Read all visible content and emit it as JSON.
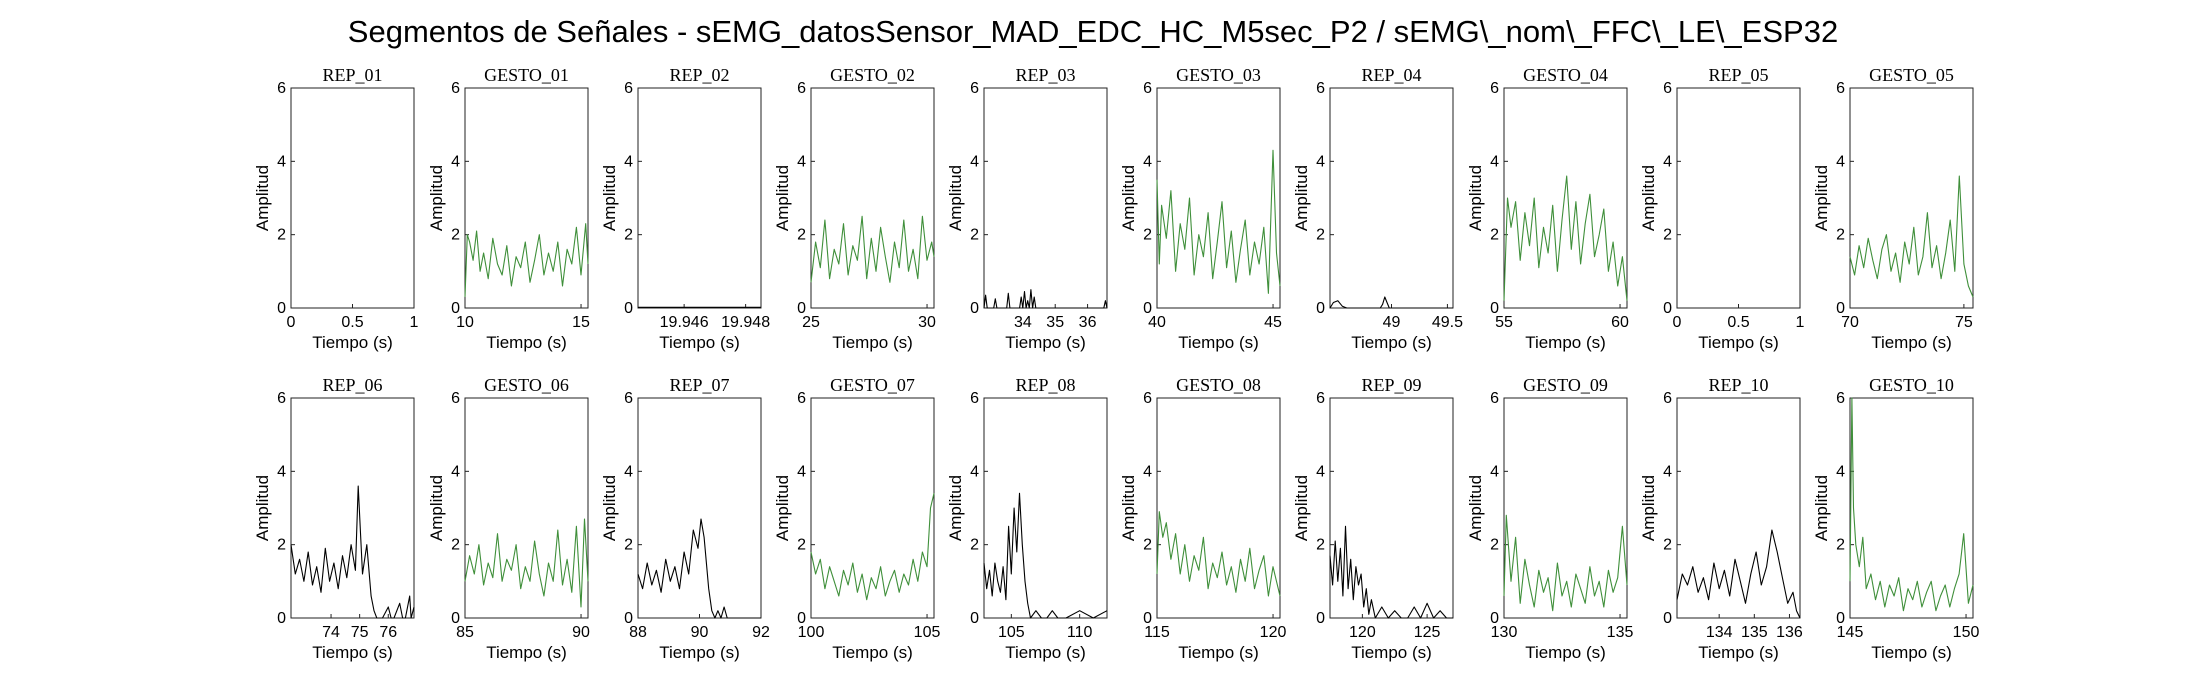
{
  "chart_data": {
    "type": "line",
    "title": "Segmentos de Señales - sEMG_datosSensor_MAD_EDC_HC_M5sec_P2 / sEMG\\_nom\\_FFC\\_LE\\_ESP32",
    "xlabel": "Tiempo (s)",
    "ylabel": "Amplitud",
    "ylim": [
      0,
      6
    ],
    "yticks": [
      0,
      2,
      4,
      6
    ],
    "colors": {
      "rep": "#000000",
      "gesto": "#3f8f3a"
    },
    "panels": [
      {
        "title": "REP_01",
        "kind": "rep",
        "xlim": [
          0,
          1
        ],
        "xticks": [
          0,
          0.5,
          1
        ],
        "x": [],
        "y": []
      },
      {
        "title": "GESTO_01",
        "kind": "gesto",
        "xlim": [
          10,
          15.3
        ],
        "xticks": [
          10,
          15
        ],
        "x": [
          10.0,
          10.1,
          10.2,
          10.35,
          10.5,
          10.65,
          10.8,
          11.0,
          11.2,
          11.4,
          11.6,
          11.8,
          12.0,
          12.2,
          12.4,
          12.6,
          12.8,
          13.0,
          13.2,
          13.4,
          13.6,
          13.8,
          14.0,
          14.2,
          14.4,
          14.6,
          14.8,
          15.0,
          15.2,
          15.3
        ],
        "y": [
          0.3,
          2.0,
          1.8,
          1.3,
          2.1,
          1.0,
          1.5,
          0.8,
          1.9,
          1.2,
          0.9,
          1.7,
          0.6,
          1.4,
          1.1,
          1.8,
          0.7,
          1.3,
          2.0,
          0.9,
          1.5,
          1.0,
          1.8,
          0.6,
          1.6,
          1.2,
          2.2,
          0.9,
          2.3,
          1.2
        ]
      },
      {
        "title": "REP_02",
        "kind": "rep",
        "xlim": [
          19.9445,
          19.9485
        ],
        "xticks": [
          19.946,
          19.948
        ],
        "x": [
          19.9445,
          19.9485
        ],
        "y": [
          0.02,
          0.02
        ]
      },
      {
        "title": "GESTO_02",
        "kind": "gesto",
        "xlim": [
          25,
          30.3
        ],
        "xticks": [
          25,
          30
        ],
        "x": [
          25.0,
          25.2,
          25.4,
          25.6,
          25.8,
          26.0,
          26.2,
          26.4,
          26.6,
          26.8,
          27.0,
          27.2,
          27.4,
          27.6,
          27.8,
          28.0,
          28.2,
          28.4,
          28.6,
          28.8,
          29.0,
          29.2,
          29.4,
          29.6,
          29.8,
          30.0,
          30.2,
          30.3
        ],
        "y": [
          0.7,
          1.8,
          1.1,
          2.4,
          0.8,
          1.6,
          1.2,
          2.3,
          0.9,
          1.7,
          1.3,
          2.5,
          0.8,
          1.9,
          1.0,
          2.2,
          1.4,
          0.7,
          1.8,
          1.1,
          2.4,
          1.0,
          1.6,
          0.8,
          2.5,
          1.3,
          1.8,
          1.4
        ]
      },
      {
        "title": "REP_03",
        "kind": "rep",
        "xlim": [
          32.8,
          36.6
        ],
        "xticks": [
          34,
          35,
          36
        ],
        "x": [
          32.8,
          32.85,
          32.9,
          33.1,
          33.15,
          33.2,
          33.5,
          33.55,
          33.6,
          33.9,
          33.95,
          34.0,
          34.05,
          34.1,
          34.15,
          34.2,
          34.25,
          34.3,
          34.35,
          34.4,
          36.5,
          36.55,
          36.6
        ],
        "y": [
          0,
          0.35,
          0,
          0,
          0.25,
          0,
          0,
          0.4,
          0,
          0,
          0.3,
          0,
          0.45,
          0,
          0.2,
          0,
          0.5,
          0,
          0.3,
          0,
          0,
          0.2,
          0
        ]
      },
      {
        "title": "GESTO_03",
        "kind": "gesto",
        "xlim": [
          40,
          45.3
        ],
        "xticks": [
          40,
          45
        ],
        "x": [
          40.0,
          40.1,
          40.2,
          40.4,
          40.6,
          40.8,
          41.0,
          41.2,
          41.4,
          41.6,
          41.8,
          42.0,
          42.2,
          42.4,
          42.6,
          42.8,
          43.0,
          43.2,
          43.4,
          43.6,
          43.8,
          44.0,
          44.2,
          44.4,
          44.6,
          44.8,
          45.0,
          45.15,
          45.3
        ],
        "y": [
          3.5,
          1.2,
          2.8,
          1.9,
          3.2,
          1.0,
          2.3,
          1.6,
          3.0,
          0.9,
          2.0,
          1.4,
          2.6,
          0.8,
          1.8,
          2.9,
          1.1,
          2.1,
          0.7,
          1.6,
          2.4,
          0.9,
          1.8,
          1.2,
          2.2,
          0.4,
          4.3,
          1.5,
          0.6
        ]
      },
      {
        "title": "REP_04",
        "kind": "rep",
        "xlim": [
          48.45,
          49.55
        ],
        "xticks": [
          49,
          49.5
        ],
        "x": [
          48.45,
          48.48,
          48.52,
          48.56,
          48.6,
          48.9,
          48.92,
          48.94,
          48.96,
          48.98,
          49.55
        ],
        "y": [
          0,
          0.15,
          0.2,
          0.05,
          0,
          0,
          0.1,
          0.3,
          0.15,
          0,
          0
        ]
      },
      {
        "title": "GESTO_04",
        "kind": "gesto",
        "xlim": [
          55,
          60.3
        ],
        "xticks": [
          55,
          60
        ],
        "x": [
          55.0,
          55.15,
          55.3,
          55.5,
          55.7,
          55.9,
          56.1,
          56.3,
          56.5,
          56.7,
          56.9,
          57.1,
          57.3,
          57.5,
          57.7,
          57.9,
          58.1,
          58.3,
          58.5,
          58.7,
          58.9,
          59.1,
          59.3,
          59.5,
          59.7,
          59.9,
          60.1,
          60.3
        ],
        "y": [
          0.2,
          3.0,
          2.2,
          2.9,
          1.3,
          2.6,
          1.7,
          3.0,
          1.1,
          2.2,
          1.5,
          2.8,
          1.0,
          2.4,
          3.6,
          1.6,
          2.9,
          1.2,
          2.3,
          3.1,
          1.4,
          2.0,
          2.7,
          1.0,
          1.8,
          0.6,
          1.4,
          0.2
        ]
      },
      {
        "title": "REP_05",
        "kind": "rep",
        "xlim": [
          0,
          1
        ],
        "xticks": [
          0,
          0.5,
          1
        ],
        "x": [],
        "y": []
      },
      {
        "title": "GESTO_05",
        "kind": "gesto",
        "xlim": [
          70,
          75.4
        ],
        "xticks": [
          70,
          75
        ],
        "x": [
          70.0,
          70.2,
          70.4,
          70.6,
          70.8,
          71.0,
          71.2,
          71.4,
          71.6,
          71.8,
          72.0,
          72.2,
          72.4,
          72.6,
          72.8,
          73.0,
          73.2,
          73.4,
          73.6,
          73.8,
          74.0,
          74.2,
          74.4,
          74.6,
          74.8,
          75.0,
          75.2,
          75.4
        ],
        "y": [
          1.4,
          0.9,
          1.7,
          1.1,
          1.9,
          1.3,
          0.8,
          1.6,
          2.0,
          1.0,
          1.5,
          0.7,
          1.8,
          1.2,
          2.2,
          0.9,
          1.4,
          2.6,
          1.1,
          1.7,
          0.8,
          1.5,
          2.4,
          1.0,
          3.6,
          1.2,
          0.6,
          0.3
        ]
      },
      {
        "title": "REP_06",
        "kind": "rep",
        "xlim": [
          72.6,
          76.9
        ],
        "xticks": [
          74,
          75,
          76
        ],
        "x": [
          72.6,
          72.75,
          72.9,
          73.05,
          73.2,
          73.35,
          73.5,
          73.65,
          73.8,
          73.95,
          74.1,
          74.25,
          74.4,
          74.55,
          74.7,
          74.85,
          74.95,
          75.1,
          75.25,
          75.4,
          75.5,
          75.6,
          75.8,
          76.0,
          76.1,
          76.2,
          76.4,
          76.5,
          76.6,
          76.75,
          76.8,
          76.9
        ],
        "y": [
          2.0,
          1.2,
          1.6,
          1.0,
          1.8,
          0.9,
          1.4,
          0.7,
          1.9,
          1.0,
          1.5,
          0.8,
          1.7,
          1.1,
          2.0,
          1.3,
          3.6,
          1.2,
          2.0,
          0.6,
          0.2,
          0,
          0,
          0.3,
          0,
          0,
          0.4,
          0,
          0,
          0.6,
          0,
          0.3
        ]
      },
      {
        "title": "GESTO_06",
        "kind": "gesto",
        "xlim": [
          85,
          90.3
        ],
        "xticks": [
          85,
          90
        ],
        "x": [
          85.0,
          85.2,
          85.4,
          85.6,
          85.8,
          86.0,
          86.2,
          86.4,
          86.6,
          86.8,
          87.0,
          87.2,
          87.4,
          87.6,
          87.8,
          88.0,
          88.2,
          88.4,
          88.6,
          88.8,
          89.0,
          89.2,
          89.4,
          89.6,
          89.8,
          90.0,
          90.15,
          90.3
        ],
        "y": [
          1.0,
          1.7,
          1.2,
          2.0,
          0.9,
          1.5,
          1.1,
          2.3,
          1.0,
          1.6,
          1.3,
          2.0,
          0.8,
          1.4,
          1.0,
          2.1,
          1.2,
          0.6,
          1.5,
          1.0,
          2.4,
          0.9,
          1.6,
          0.7,
          2.5,
          0.3,
          2.7,
          1.0
        ]
      },
      {
        "title": "REP_07",
        "kind": "rep",
        "xlim": [
          88,
          92
        ],
        "xticks": [
          88,
          90,
          92
        ],
        "x": [
          88.0,
          88.15,
          88.3,
          88.45,
          88.6,
          88.75,
          88.9,
          89.05,
          89.2,
          89.35,
          89.5,
          89.65,
          89.8,
          89.95,
          90.05,
          90.15,
          90.3,
          90.4,
          90.5,
          90.6,
          90.7,
          90.8,
          90.9,
          91.0,
          91.3,
          92.0
        ],
        "y": [
          1.2,
          0.8,
          1.5,
          0.9,
          1.3,
          0.7,
          1.6,
          1.0,
          1.4,
          0.8,
          1.8,
          1.2,
          2.4,
          1.9,
          2.7,
          2.2,
          0.8,
          0.2,
          0,
          0.2,
          0,
          0.3,
          0,
          0,
          0,
          0
        ]
      },
      {
        "title": "GESTO_07",
        "kind": "gesto",
        "xlim": [
          100,
          105.3
        ],
        "xticks": [
          100,
          105
        ],
        "x": [
          100.0,
          100.2,
          100.4,
          100.6,
          100.8,
          101.0,
          101.2,
          101.4,
          101.6,
          101.8,
          102.0,
          102.2,
          102.4,
          102.6,
          102.8,
          103.0,
          103.2,
          103.4,
          103.6,
          103.8,
          104.0,
          104.2,
          104.4,
          104.6,
          104.8,
          105.0,
          105.15,
          105.3
        ],
        "y": [
          1.8,
          1.2,
          1.6,
          0.8,
          1.4,
          1.0,
          0.6,
          1.3,
          0.9,
          1.5,
          0.7,
          1.2,
          0.5,
          1.1,
          0.8,
          1.4,
          0.6,
          1.0,
          1.3,
          0.7,
          1.2,
          0.9,
          1.6,
          1.0,
          1.8,
          1.4,
          3.0,
          3.4
        ]
      },
      {
        "title": "REP_08",
        "kind": "rep",
        "xlim": [
          103,
          112
        ],
        "xticks": [
          105,
          110
        ],
        "x": [
          103.0,
          103.2,
          103.4,
          103.6,
          103.8,
          104.0,
          104.2,
          104.4,
          104.6,
          104.8,
          105.0,
          105.2,
          105.4,
          105.6,
          105.8,
          106.0,
          106.2,
          106.4,
          106.8,
          107.2,
          107.6,
          108.0,
          108.4,
          109.0,
          110.0,
          111.0,
          112.0
        ],
        "y": [
          1.5,
          0.8,
          1.3,
          0.6,
          1.5,
          1.0,
          0.7,
          1.4,
          0.5,
          2.5,
          1.2,
          3.0,
          1.8,
          3.4,
          2.0,
          1.0,
          0.4,
          0,
          0.2,
          0,
          0,
          0.2,
          0,
          0,
          0.2,
          0,
          0.2
        ]
      },
      {
        "title": "GESTO_08",
        "kind": "gesto",
        "xlim": [
          115,
          120.3
        ],
        "xticks": [
          115,
          120
        ],
        "x": [
          115.0,
          115.1,
          115.25,
          115.4,
          115.6,
          115.8,
          116.0,
          116.2,
          116.4,
          116.6,
          116.8,
          117.0,
          117.2,
          117.4,
          117.6,
          117.8,
          118.0,
          118.2,
          118.4,
          118.6,
          118.8,
          119.0,
          119.2,
          119.4,
          119.6,
          119.8,
          120.0,
          120.3
        ],
        "y": [
          1.2,
          2.9,
          2.2,
          2.6,
          1.6,
          2.3,
          1.2,
          2.0,
          1.0,
          1.7,
          1.3,
          2.2,
          0.8,
          1.5,
          1.1,
          1.8,
          0.9,
          1.4,
          0.7,
          1.6,
          1.0,
          1.9,
          0.8,
          1.3,
          1.7,
          0.6,
          1.4,
          0.6
        ]
      },
      {
        "title": "REP_09",
        "kind": "rep",
        "xlim": [
          117.5,
          127
        ],
        "xticks": [
          120,
          125
        ],
        "x": [
          117.5,
          117.7,
          117.9,
          118.1,
          118.3,
          118.5,
          118.7,
          118.9,
          119.1,
          119.3,
          119.5,
          119.7,
          119.9,
          120.1,
          120.3,
          120.5,
          120.7,
          121.0,
          121.5,
          122.0,
          122.5,
          123.0,
          123.5,
          124.0,
          124.5,
          125.0,
          125.5,
          126.0,
          126.5,
          127.0
        ],
        "y": [
          1.7,
          0.9,
          2.1,
          1.0,
          1.9,
          0.6,
          2.5,
          0.8,
          1.6,
          0.5,
          1.4,
          0.9,
          1.2,
          0.3,
          0.8,
          0.1,
          0.5,
          0,
          0.3,
          0,
          0.2,
          0,
          0,
          0.3,
          0,
          0.4,
          0,
          0.2,
          0,
          0
        ]
      },
      {
        "title": "GESTO_09",
        "kind": "gesto",
        "xlim": [
          130,
          135.3
        ],
        "xticks": [
          130,
          135
        ],
        "x": [
          130.0,
          130.1,
          130.3,
          130.5,
          130.7,
          130.9,
          131.1,
          131.3,
          131.5,
          131.7,
          131.9,
          132.1,
          132.3,
          132.5,
          132.7,
          132.9,
          133.1,
          133.3,
          133.5,
          133.7,
          133.9,
          134.1,
          134.3,
          134.5,
          134.7,
          134.9,
          135.1,
          135.3
        ],
        "y": [
          0.6,
          2.8,
          1.0,
          2.2,
          0.4,
          1.6,
          0.9,
          0.3,
          1.3,
          0.7,
          1.1,
          0.2,
          1.5,
          0.6,
          1.0,
          0.3,
          1.2,
          0.8,
          0.4,
          1.4,
          0.6,
          1.0,
          0.3,
          1.3,
          0.7,
          1.1,
          2.5,
          0.9
        ]
      },
      {
        "title": "REP_10",
        "kind": "rep",
        "xlim": [
          132.8,
          136.3
        ],
        "xticks": [
          134,
          135,
          136
        ],
        "x": [
          132.8,
          132.95,
          133.1,
          133.25,
          133.4,
          133.55,
          133.7,
          133.85,
          134.0,
          134.15,
          134.3,
          134.45,
          134.6,
          134.75,
          134.9,
          135.05,
          135.2,
          135.35,
          135.5,
          135.65,
          135.8,
          135.95,
          136.1,
          136.2,
          136.3
        ],
        "y": [
          0.5,
          1.2,
          0.9,
          1.4,
          0.7,
          1.1,
          0.5,
          1.5,
          0.8,
          1.3,
          0.6,
          1.6,
          1.0,
          0.4,
          1.2,
          1.8,
          0.9,
          1.4,
          2.4,
          1.8,
          1.1,
          0.4,
          0.7,
          0.2,
          0
        ]
      },
      {
        "title": "GESTO_10",
        "kind": "gesto",
        "xlim": [
          145,
          150.3
        ],
        "xticks": [
          145,
          150
        ],
        "x": [
          145.0,
          145.08,
          145.15,
          145.25,
          145.4,
          145.55,
          145.7,
          145.9,
          146.1,
          146.3,
          146.5,
          146.7,
          146.9,
          147.1,
          147.3,
          147.5,
          147.7,
          147.9,
          148.1,
          148.3,
          148.5,
          148.7,
          148.9,
          149.1,
          149.3,
          149.5,
          149.7,
          149.9,
          150.1,
          150.3
        ],
        "y": [
          1.0,
          6.0,
          3.0,
          2.0,
          1.4,
          2.2,
          0.8,
          1.2,
          0.5,
          1.0,
          0.3,
          0.9,
          0.6,
          1.1,
          0.2,
          0.8,
          0.5,
          1.0,
          0.3,
          0.7,
          1.0,
          0.2,
          0.6,
          0.9,
          0.3,
          0.8,
          1.2,
          2.3,
          0.4,
          0.9
        ]
      }
    ]
  }
}
